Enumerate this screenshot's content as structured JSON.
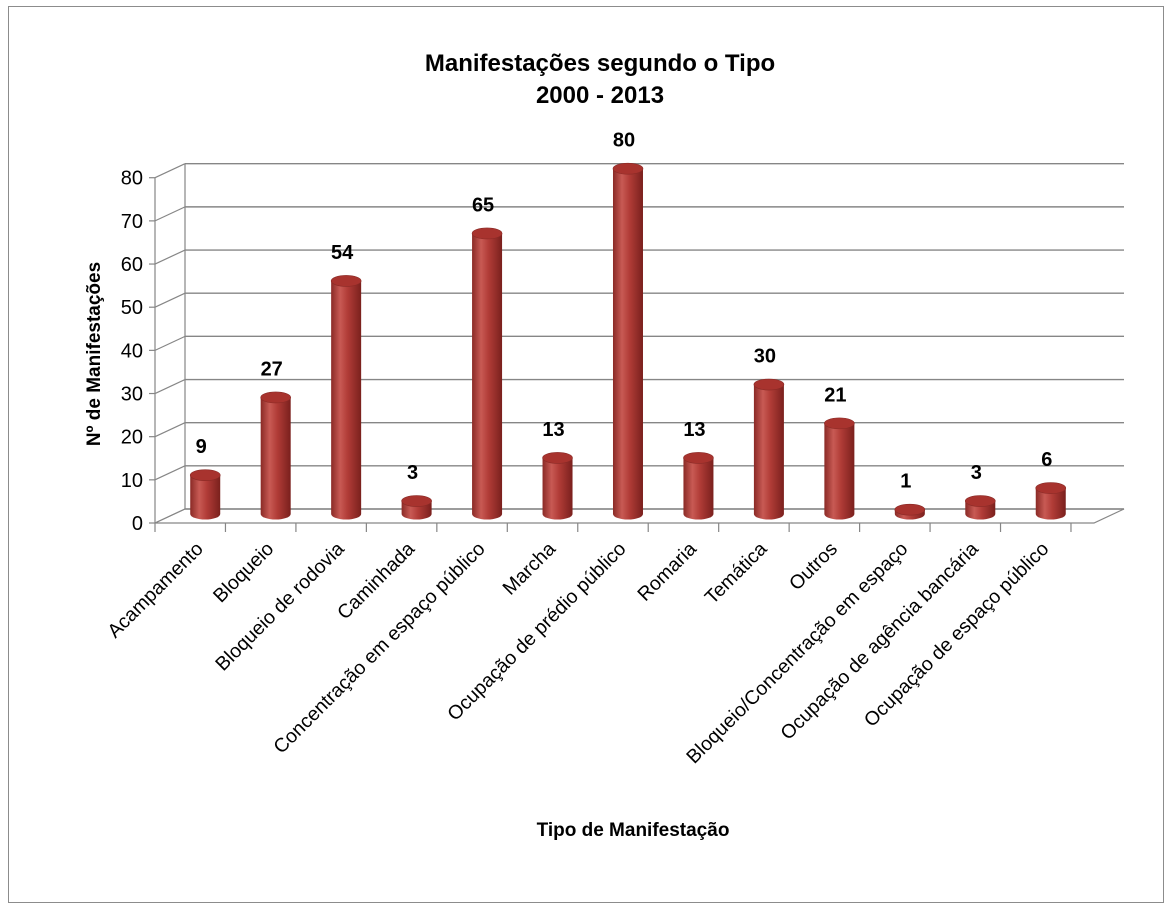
{
  "chart_data": {
    "type": "bar",
    "title": "Manifestações segundo o Tipo",
    "subtitle": "2000 - 2013",
    "xlabel": "Tipo de Manifestação",
    "ylabel": "Nº de Manifestações",
    "ylim": [
      0,
      80
    ],
    "yticks": [
      "0",
      "10",
      "20",
      "30",
      "40",
      "50",
      "60",
      "70",
      "80"
    ],
    "grid": true,
    "legend": "none",
    "bar_color": "#b2403b",
    "categories": [
      "Acampamento",
      "Bloqueio",
      "Bloqueio de rodovia",
      "Caminhada",
      "Concentração em espaço público",
      "Marcha",
      "Ocupação de prédio público",
      "Romaria",
      "Temática",
      "Outros",
      "Bloqueio/Concentração em espaço",
      "Ocupação de agência bancária",
      "Ocupação de espaço público"
    ],
    "values": [
      9,
      27,
      54,
      3,
      65,
      13,
      80,
      13,
      30,
      21,
      1,
      3,
      6
    ],
    "data_labels": [
      "9",
      "27",
      "54",
      "3",
      "65",
      "13",
      "80",
      "13",
      "30",
      "21",
      "1",
      "3",
      "6"
    ]
  }
}
